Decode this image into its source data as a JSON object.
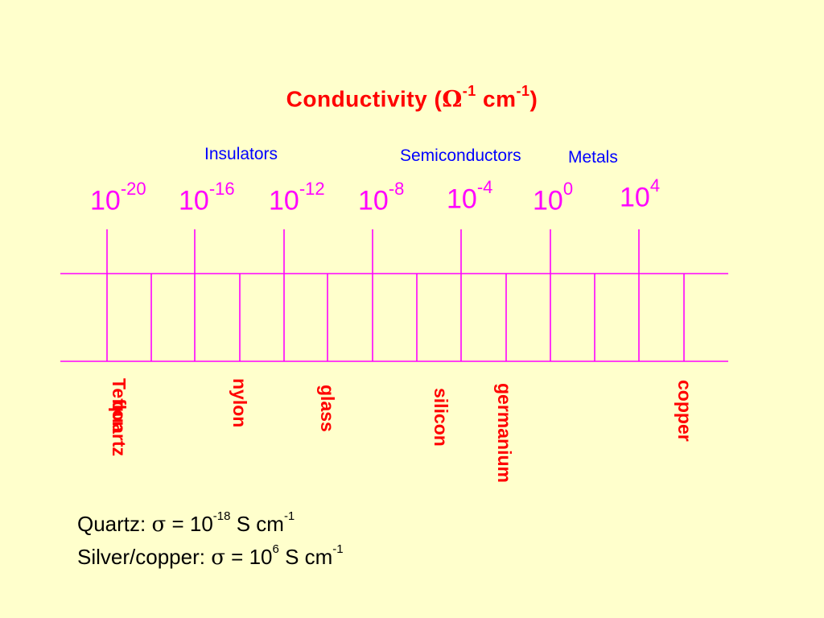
{
  "title": {
    "text": "Conductivity (",
    "omega": "Ω",
    "exp1": "-1",
    "unit": " cm",
    "exp2": "-1",
    "close": ")"
  },
  "categories": {
    "insulators": "Insulators",
    "semiconductors": "Semiconductors",
    "metals": "Metals"
  },
  "scale": {
    "base": "10",
    "exponents": [
      "-20",
      "-16",
      "-12",
      "-8",
      "-4",
      "0",
      "4"
    ]
  },
  "materials": {
    "teflon": "Teflon",
    "quartz": "quartz",
    "nylon": "nylon",
    "glass": "glass",
    "silicon": "silicon",
    "germanium": "germanium",
    "copper": "copper"
  },
  "notes": {
    "quartz": {
      "prefix": "Quartz: ",
      "sigma": "σ",
      "eq": " = 10",
      "exp": "-18",
      "unit": " S cm",
      "unit_exp": "-1"
    },
    "silver": {
      "prefix": "Silver/copper: ",
      "sigma": "σ",
      "eq": " = 10",
      "exp": "6",
      "unit": " S cm",
      "unit_exp": "-1"
    }
  },
  "colors": {
    "background": "#FFFFCC",
    "title": "#FF0000",
    "category": "#0000FF",
    "scale": "#FF00FF",
    "material": "#FF0000",
    "text": "#000000"
  }
}
